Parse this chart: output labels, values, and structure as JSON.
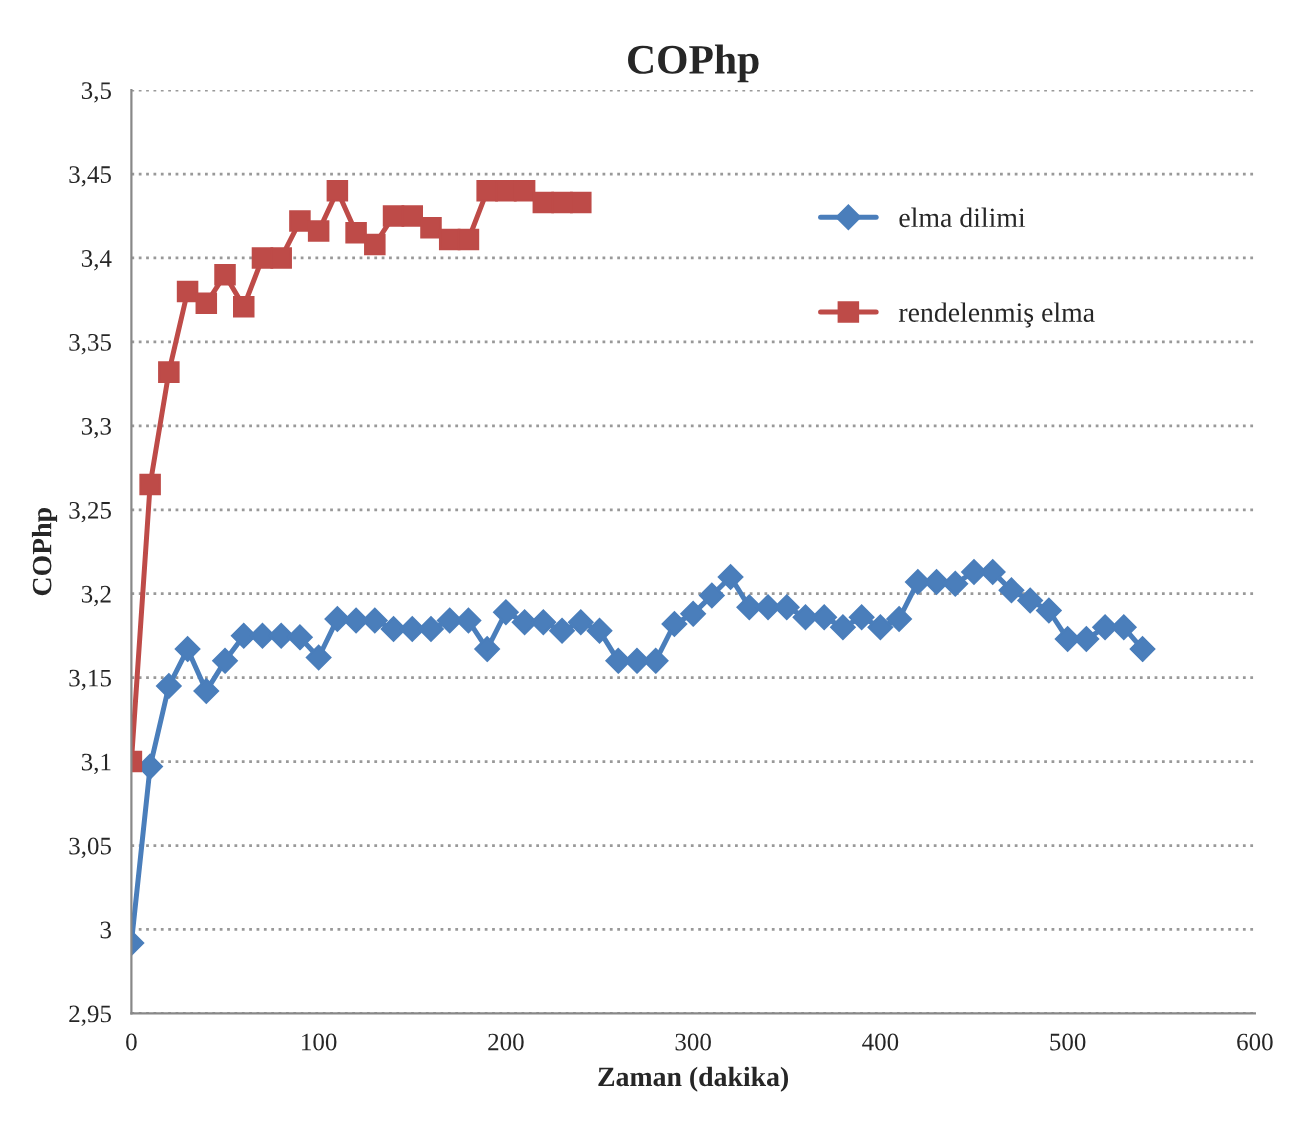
{
  "chart_data": {
    "type": "line",
    "title": "COPhp",
    "xlabel": "Zaman (dakika)",
    "ylabel": "COPhp",
    "xlim": [
      0,
      600
    ],
    "xticks": [
      0,
      100,
      200,
      300,
      400,
      500,
      600
    ],
    "ylim": [
      2.95,
      3.5
    ],
    "yticks": [
      {
        "value": 2.95,
        "label": "2,95"
      },
      {
        "value": 3.0,
        "label": "3"
      },
      {
        "value": 3.05,
        "label": "3,05"
      },
      {
        "value": 3.1,
        "label": "3,1"
      },
      {
        "value": 3.15,
        "label": "3,15"
      },
      {
        "value": 3.2,
        "label": "3,2"
      },
      {
        "value": 3.25,
        "label": "3,25"
      },
      {
        "value": 3.3,
        "label": "3,3"
      },
      {
        "value": 3.35,
        "label": "3,35"
      },
      {
        "value": 3.4,
        "label": "3,4"
      },
      {
        "value": 3.45,
        "label": "3,45"
      },
      {
        "value": 3.5,
        "label": "3,5"
      }
    ],
    "grid": "y",
    "legend": "top right",
    "line_style": "solid",
    "series": [
      {
        "name": "elma dilimi",
        "color": "#4a7ebb",
        "marker": "diamond",
        "x": [
          0,
          10,
          20,
          30,
          40,
          50,
          60,
          70,
          80,
          90,
          100,
          110,
          120,
          130,
          140,
          150,
          160,
          170,
          180,
          190,
          200,
          210,
          220,
          230,
          240,
          250,
          260,
          270,
          280,
          290,
          300,
          310,
          320,
          330,
          340,
          350,
          360,
          370,
          380,
          390,
          400,
          410,
          420,
          430,
          440,
          450,
          460,
          470,
          480,
          490,
          500,
          510,
          520,
          530,
          540
        ],
        "values": [
          2.992,
          3.097,
          3.145,
          3.167,
          3.142,
          3.16,
          3.175,
          3.175,
          3.175,
          3.174,
          3.162,
          3.185,
          3.184,
          3.184,
          3.179,
          3.179,
          3.179,
          3.184,
          3.184,
          3.167,
          3.189,
          3.183,
          3.183,
          3.178,
          3.183,
          3.178,
          3.16,
          3.16,
          3.16,
          3.182,
          3.188,
          3.199,
          3.21,
          3.192,
          3.192,
          3.192,
          3.186,
          3.186,
          3.18,
          3.186,
          3.18,
          3.185,
          3.207,
          3.207,
          3.206,
          3.213,
          3.213,
          3.202,
          3.196,
          3.19,
          3.173,
          3.173,
          3.18,
          3.18,
          3.167
        ]
      },
      {
        "name": "rendelenmiş elma",
        "color": "#be4b48",
        "marker": "square",
        "x": [
          0,
          10,
          20,
          30,
          40,
          50,
          60,
          70,
          80,
          90,
          100,
          110,
          120,
          130,
          140,
          150,
          160,
          170,
          180,
          190,
          200,
          210,
          220,
          230,
          240
        ],
        "values": [
          3.1,
          3.265,
          3.332,
          3.38,
          3.373,
          3.39,
          3.371,
          3.4,
          3.4,
          3.422,
          3.416,
          3.44,
          3.415,
          3.408,
          3.425,
          3.425,
          3.418,
          3.411,
          3.411,
          3.44,
          3.44,
          3.44,
          3.433,
          3.433,
          3.433
        ]
      }
    ]
  }
}
